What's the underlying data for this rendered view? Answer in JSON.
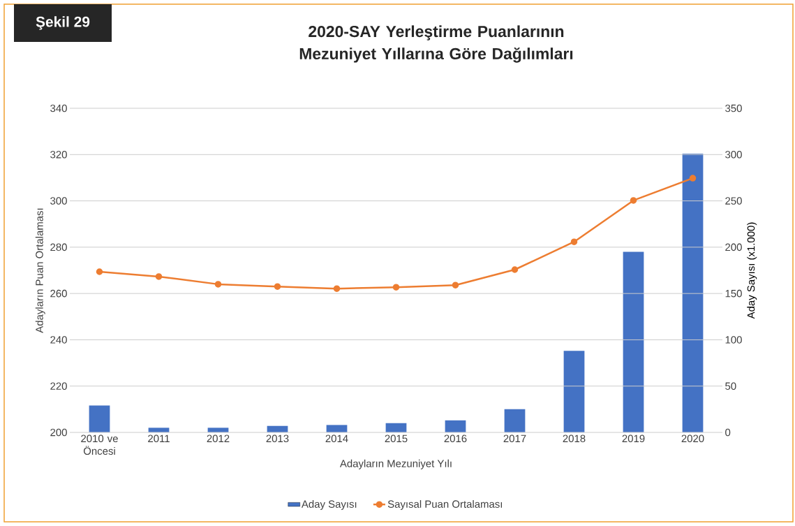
{
  "chart_data": {
    "type": "bar",
    "title": "2020-SAY Yerleştirme Puanlarının Mezuniyet Yıllarına Göre Dağılımları",
    "xlabel": "Adayların Mezuniyet Yılı",
    "ylabel": "Adayların Puan Ortalaması",
    "y2label": "Aday Sayısı (x1.000)",
    "annotations": [
      "Şekil 29"
    ],
    "categories": [
      "2010 ve Öncesi",
      "2011",
      "2012",
      "2013",
      "2014",
      "2015",
      "2016",
      "2017",
      "2018",
      "2019",
      "2020"
    ],
    "series": [
      {
        "name": "Aday Sayısı",
        "axis": "y2",
        "color": "#4472c4",
        "values": [
          29,
          5,
          5,
          7,
          8,
          10,
          13,
          25,
          88,
          195,
          301
        ]
      },
      {
        "name": "Sayısal Puan Ortalaması",
        "type": "line",
        "axis": "y",
        "color": "#ed7d31",
        "values": [
          269.4,
          267.3,
          264.0,
          263.0,
          262.1,
          262.7,
          263.6,
          270.3,
          282.3,
          300.2,
          309.8
        ]
      }
    ],
    "ylim": [
      200,
      340
    ],
    "yticks": [
      200,
      220,
      240,
      260,
      280,
      300,
      320,
      340
    ],
    "y2lim": [
      0,
      350
    ],
    "y2ticks": [
      0,
      50,
      100,
      150,
      200,
      250,
      300,
      350
    ],
    "grid": "y",
    "legend": "bottom",
    "marker": "circle",
    "line_style": "solid"
  }
}
